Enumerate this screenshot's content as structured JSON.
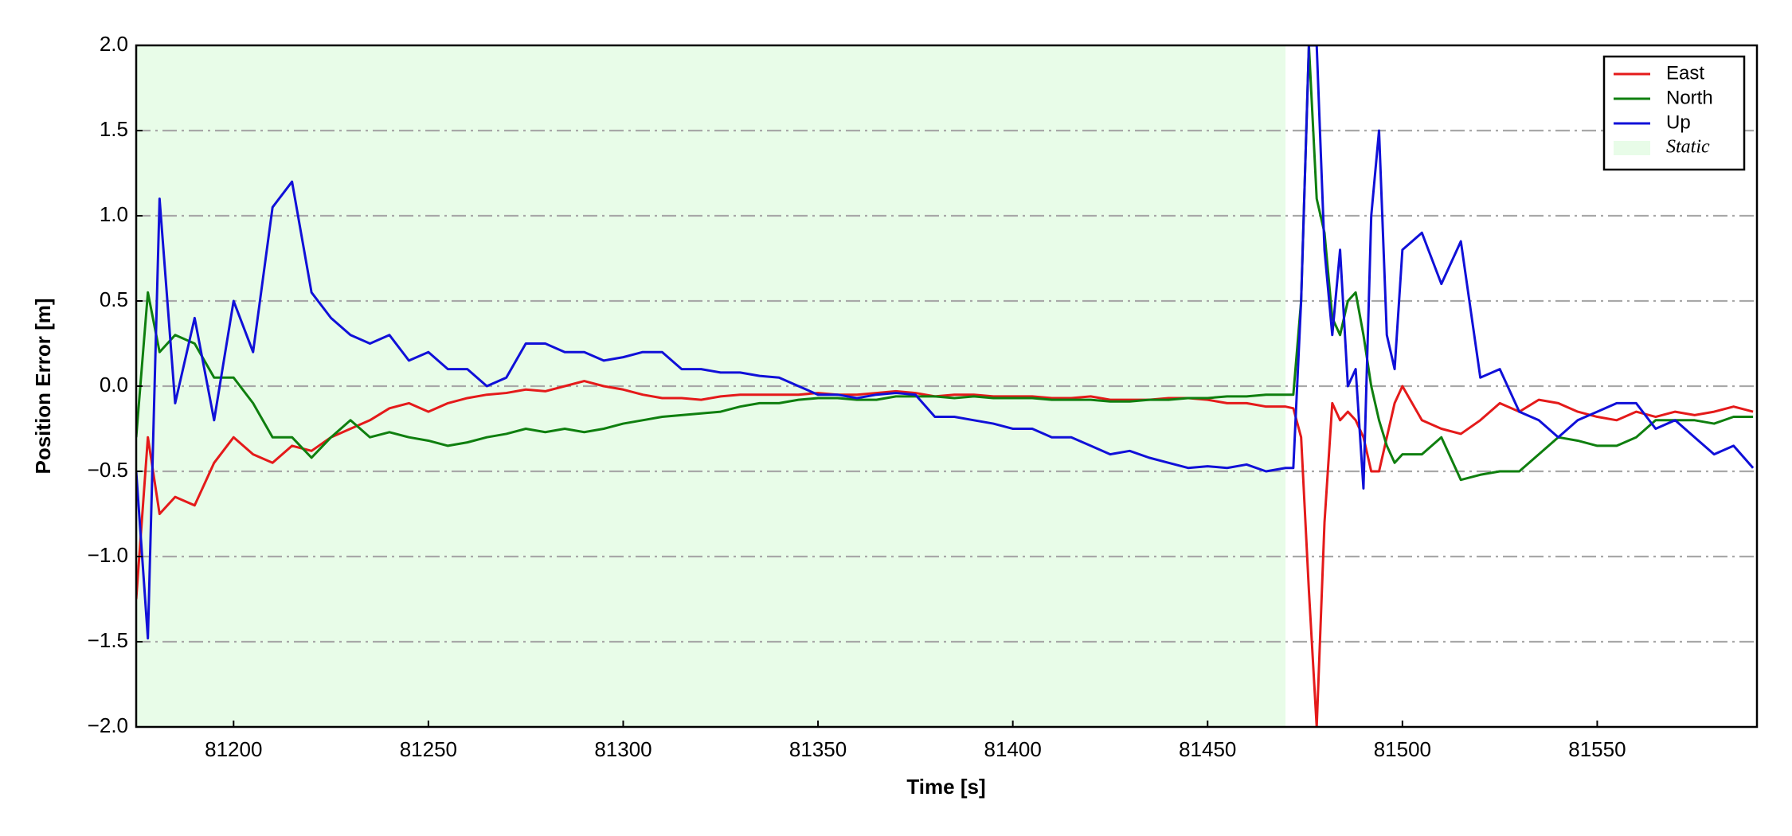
{
  "chart_data": {
    "type": "line",
    "xlabel": "Time [s]",
    "ylabel": "Position Error [m]",
    "x": [
      81175,
      81178,
      81181,
      81185,
      81190,
      81195,
      81200,
      81205,
      81210,
      81215,
      81220,
      81225,
      81230,
      81235,
      81240,
      81245,
      81250,
      81255,
      81260,
      81265,
      81270,
      81275,
      81280,
      81285,
      81290,
      81295,
      81300,
      81305,
      81310,
      81315,
      81320,
      81325,
      81330,
      81335,
      81340,
      81345,
      81350,
      81355,
      81360,
      81365,
      81370,
      81375,
      81380,
      81385,
      81390,
      81395,
      81400,
      81405,
      81410,
      81415,
      81420,
      81425,
      81430,
      81435,
      81440,
      81445,
      81450,
      81455,
      81460,
      81465,
      81470,
      81472,
      81474,
      81476,
      81478,
      81480,
      81482,
      81484,
      81486,
      81488,
      81490,
      81492,
      81494,
      81496,
      81498,
      81500,
      81505,
      81510,
      81515,
      81520,
      81525,
      81530,
      81535,
      81540,
      81545,
      81550,
      81555,
      81560,
      81565,
      81570,
      81575,
      81580,
      81585,
      81590
    ],
    "series": [
      {
        "name": "East",
        "color": "#e41a1a",
        "values": [
          -1.25,
          -0.3,
          -0.75,
          -0.65,
          -0.7,
          -0.45,
          -0.3,
          -0.4,
          -0.45,
          -0.35,
          -0.38,
          -0.3,
          -0.25,
          -0.2,
          -0.13,
          -0.1,
          -0.15,
          -0.1,
          -0.07,
          -0.05,
          -0.04,
          -0.02,
          -0.03,
          0.0,
          0.03,
          0.0,
          -0.02,
          -0.05,
          -0.07,
          -0.07,
          -0.08,
          -0.06,
          -0.05,
          -0.05,
          -0.05,
          -0.05,
          -0.04,
          -0.05,
          -0.05,
          -0.04,
          -0.03,
          -0.04,
          -0.06,
          -0.05,
          -0.05,
          -0.06,
          -0.06,
          -0.06,
          -0.07,
          -0.07,
          -0.06,
          -0.08,
          -0.08,
          -0.08,
          -0.07,
          -0.07,
          -0.08,
          -0.1,
          -0.1,
          -0.12,
          -0.12,
          -0.13,
          -0.3,
          -1.2,
          -2.0,
          -0.8,
          -0.1,
          -0.2,
          -0.15,
          -0.2,
          -0.3,
          -0.5,
          -0.5,
          -0.3,
          -0.1,
          0.0,
          -0.2,
          -0.25,
          -0.28,
          -0.2,
          -0.1,
          -0.15,
          -0.08,
          -0.1,
          -0.15,
          -0.18,
          -0.2,
          -0.15,
          -0.18,
          -0.15,
          -0.17,
          -0.15,
          -0.12,
          -0.15
        ]
      },
      {
        "name": "North",
        "color": "#0f7f0f",
        "values": [
          -0.3,
          0.55,
          0.2,
          0.3,
          0.25,
          0.05,
          0.05,
          -0.1,
          -0.3,
          -0.3,
          -0.42,
          -0.3,
          -0.2,
          -0.3,
          -0.27,
          -0.3,
          -0.32,
          -0.35,
          -0.33,
          -0.3,
          -0.28,
          -0.25,
          -0.27,
          -0.25,
          -0.27,
          -0.25,
          -0.22,
          -0.2,
          -0.18,
          -0.17,
          -0.16,
          -0.15,
          -0.12,
          -0.1,
          -0.1,
          -0.08,
          -0.07,
          -0.07,
          -0.08,
          -0.08,
          -0.06,
          -0.06,
          -0.06,
          -0.07,
          -0.06,
          -0.07,
          -0.07,
          -0.07,
          -0.08,
          -0.08,
          -0.08,
          -0.09,
          -0.09,
          -0.08,
          -0.08,
          -0.07,
          -0.07,
          -0.06,
          -0.06,
          -0.05,
          -0.05,
          -0.05,
          0.5,
          2.0,
          1.1,
          0.9,
          0.4,
          0.3,
          0.5,
          0.55,
          0.3,
          0.0,
          -0.2,
          -0.35,
          -0.45,
          -0.4,
          -0.4,
          -0.3,
          -0.55,
          -0.52,
          -0.5,
          -0.5,
          -0.4,
          -0.3,
          -0.32,
          -0.35,
          -0.35,
          -0.3,
          -0.2,
          -0.2,
          -0.2,
          -0.22,
          -0.18,
          -0.18
        ]
      },
      {
        "name": "Up",
        "color": "#1010d8",
        "values": [
          -0.5,
          -1.48,
          1.1,
          -0.1,
          0.4,
          -0.2,
          0.5,
          0.2,
          1.05,
          1.2,
          0.55,
          0.4,
          0.3,
          0.25,
          0.3,
          0.15,
          0.2,
          0.1,
          0.1,
          0.0,
          0.05,
          0.25,
          0.25,
          0.2,
          0.2,
          0.15,
          0.17,
          0.2,
          0.2,
          0.1,
          0.1,
          0.08,
          0.08,
          0.06,
          0.05,
          0.0,
          -0.05,
          -0.05,
          -0.07,
          -0.05,
          -0.04,
          -0.05,
          -0.18,
          -0.18,
          -0.2,
          -0.22,
          -0.25,
          -0.25,
          -0.3,
          -0.3,
          -0.35,
          -0.4,
          -0.38,
          -0.42,
          -0.45,
          -0.48,
          -0.47,
          -0.48,
          -0.46,
          -0.5,
          -0.48,
          -0.48,
          0.5,
          2.0,
          2.0,
          0.8,
          0.3,
          0.8,
          0.0,
          0.1,
          -0.6,
          1.0,
          1.5,
          0.3,
          0.1,
          0.8,
          0.9,
          0.6,
          0.85,
          0.05,
          0.1,
          -0.15,
          -0.2,
          -0.3,
          -0.2,
          -0.15,
          -0.1,
          -0.1,
          -0.25,
          -0.2,
          -0.3,
          -0.4,
          -0.35,
          -0.48
        ]
      }
    ],
    "spans": [
      {
        "name": "Static",
        "color": "#e8fce8",
        "x0": 81175,
        "x1": 81470
      }
    ],
    "xlim": [
      81175,
      81591
    ],
    "ylim": [
      -2,
      2
    ],
    "xticks": [
      81200,
      81250,
      81300,
      81350,
      81400,
      81450,
      81500,
      81550
    ],
    "yticks": [
      {
        "value": -2,
        "label": "−2.0"
      },
      {
        "value": -1.5,
        "label": "−1.5"
      },
      {
        "value": -1,
        "label": "−1.0"
      },
      {
        "value": -0.5,
        "label": "−0.5"
      },
      {
        "value": 0,
        "label": "0.0"
      },
      {
        "value": 0.5,
        "label": "0.5"
      },
      {
        "value": 1,
        "label": "1.0"
      },
      {
        "value": 1.5,
        "label": "1.5"
      },
      {
        "value": 2,
        "label": "2.0"
      }
    ],
    "grid": true,
    "legend": "upper right"
  }
}
